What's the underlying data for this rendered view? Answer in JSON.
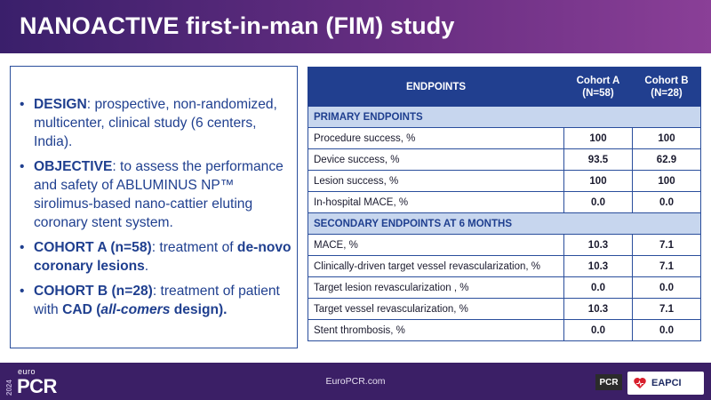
{
  "title": "NANOACTIVE first-in-man (FIM) study",
  "left_panel": {
    "bullets": [
      {
        "segments": [
          {
            "t": "DESIGN",
            "b": true
          },
          {
            "t": ": prospective, non-randomized, multicenter, clinical study (6 centers, India)."
          }
        ]
      },
      {
        "segments": [
          {
            "t": "OBJECTIVE",
            "b": true
          },
          {
            "t": ": to assess the performance and safety of ABLUMINUS NP™ sirolimus-based nano-cattier eluting coronary stent system."
          }
        ]
      },
      {
        "segments": [
          {
            "t": "COHORT A (n=58)",
            "b": true
          },
          {
            "t": ": treatment of "
          },
          {
            "t": "de-novo coronary lesions",
            "b": true
          },
          {
            "t": "."
          }
        ]
      },
      {
        "segments": [
          {
            "t": "COHORT B (n=28)",
            "b": true
          },
          {
            "t": ": treatment of patient with "
          },
          {
            "t": "CAD (",
            "b": true
          },
          {
            "t": "all-comers",
            "b": true,
            "i": true
          },
          {
            "t": " design).",
            "b": true
          }
        ]
      }
    ]
  },
  "table": {
    "headers": {
      "endpoint": "ENDPOINTS",
      "cohort_a": "Cohort A (N=58)",
      "cohort_b": "Cohort B (N=28)"
    },
    "primary_label": "PRIMARY ENDPOINTS",
    "primary_rows": [
      {
        "label": "Procedure success, %",
        "a": "100",
        "b": "100"
      },
      {
        "label": "Device success, %",
        "a": "93.5",
        "b": "62.9"
      },
      {
        "label": "Lesion success, %",
        "a": "100",
        "b": "100"
      },
      {
        "label": "In-hospital MACE, %",
        "a": "0.0",
        "b": "0.0"
      }
    ],
    "secondary_label": "SECONDARY ENDPOINTS AT 6 MONTHS",
    "secondary_rows": [
      {
        "label": "MACE, %",
        "a": "10.3",
        "b": "7.1"
      },
      {
        "label": "Clinically-driven target vessel revascularization, %",
        "a": "10.3",
        "b": "7.1"
      },
      {
        "label": "Target lesion revascularization , %",
        "a": "0.0",
        "b": "0.0"
      },
      {
        "label": "Target vessel revascularization, %",
        "a": "10.3",
        "b": "7.1"
      },
      {
        "label": "Stent thrombosis, %",
        "a": "0.0",
        "b": "0.0"
      }
    ]
  },
  "footer": {
    "year": "2024",
    "logo_euro": "euro",
    "logo_pcr": "PCR",
    "url": "EuroPCR.com",
    "pcr_badge": "PCR",
    "eapci": "EAPCI"
  },
  "colors": {
    "title_bar": "#5a2a7a",
    "table_header": "#213f8f",
    "section_row": "#c7d6ee",
    "text_blue": "#1f3f8f",
    "footer": "#3b1f66"
  }
}
